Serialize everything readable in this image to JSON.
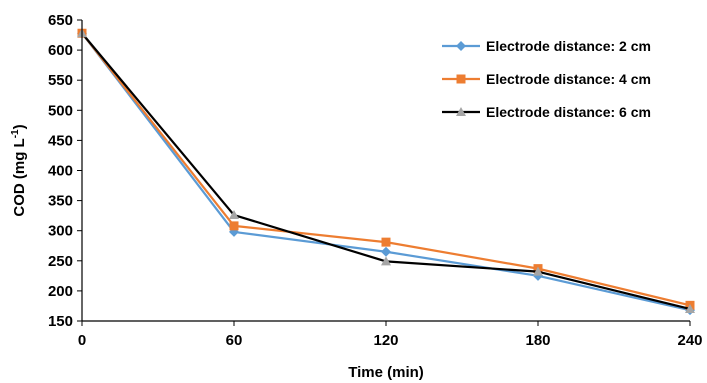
{
  "chart_data": {
    "type": "line",
    "xlabel": "Time (min)",
    "ylabel_main": "COD (mg L",
    "ylabel_sup": "-1",
    "ylabel_close": ")",
    "x": [
      0,
      60,
      120,
      180,
      240
    ],
    "xlim": [
      0,
      240
    ],
    "ylim": [
      150,
      650
    ],
    "x_ticks": [
      0,
      60,
      120,
      180,
      240
    ],
    "y_ticks": [
      150,
      200,
      250,
      300,
      350,
      400,
      450,
      500,
      550,
      600,
      650
    ],
    "grid": false,
    "legend_position": "top-right",
    "series": [
      {
        "name": "Electrode distance: 2 cm",
        "values": [
          628,
          298,
          265,
          225,
          168
        ],
        "color": "#5b9bd5",
        "marker": "diamond"
      },
      {
        "name": "Electrode distance: 4 cm",
        "values": [
          628,
          308,
          281,
          237,
          176
        ],
        "color": "#ed7d31",
        "marker": "square"
      },
      {
        "name": "Electrode distance: 6 cm",
        "values": [
          628,
          326,
          249,
          232,
          170
        ],
        "color": "#000000",
        "marker": "triangle",
        "marker_color": "#a5a5a5"
      }
    ]
  }
}
